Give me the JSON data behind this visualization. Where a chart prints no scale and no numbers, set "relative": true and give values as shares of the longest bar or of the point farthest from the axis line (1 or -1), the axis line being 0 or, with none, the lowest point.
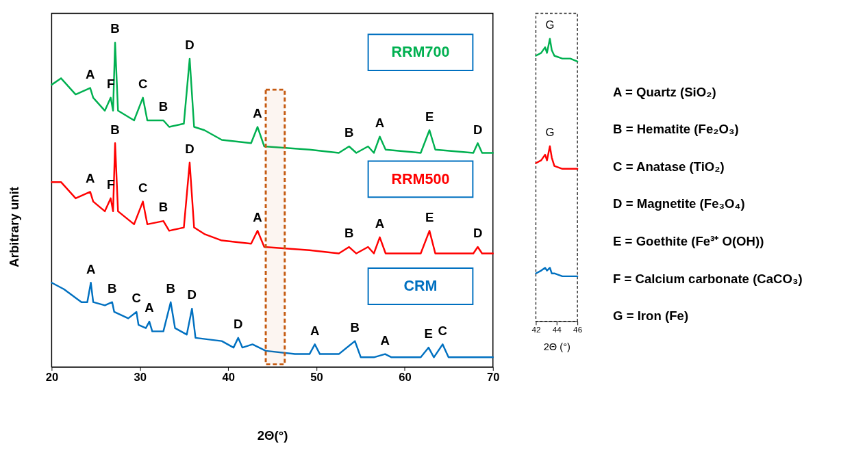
{
  "chart_data": [
    {
      "type": "line",
      "relative": true,
      "xlabel": "2Θ(°)",
      "ylabel": "Arbitrary unit",
      "xlim": [
        20,
        70
      ],
      "xticks": [
        20,
        30,
        40,
        50,
        60,
        70
      ],
      "legend": false,
      "grid": false,
      "series": [
        {
          "name": "RRM700",
          "color": "#00b050",
          "x": [
            20,
            21.06,
            22.72,
            24.37,
            24.71,
            26.03,
            26.69,
            26.96,
            27.19,
            27.52,
            29.34,
            30.34,
            30.84,
            32.66,
            33.32,
            34.98,
            35.64,
            36.14,
            37.3,
            39.28,
            42.6,
            43.33,
            44.09,
            49.22,
            52.54,
            53.7,
            54.52,
            55.85,
            56.51,
            57.18,
            57.84,
            61.82,
            62.81,
            63.47,
            67.78,
            68.28,
            68.77,
            70
          ],
          "values": [
            0.87,
            0.89,
            0.84,
            0.86,
            0.83,
            0.79,
            0.83,
            0.79,
            1,
            0.79,
            0.76,
            0.83,
            0.76,
            0.76,
            0.74,
            0.75,
            0.95,
            0.74,
            0.73,
            0.7,
            0.69,
            0.74,
            0.68,
            0.67,
            0.66,
            0.68,
            0.66,
            0.68,
            0.66,
            0.71,
            0.67,
            0.66,
            0.73,
            0.67,
            0.66,
            0.69,
            0.66,
            0.66
          ]
        },
        {
          "name": "RRM500",
          "color": "#ff0000",
          "x": [
            20,
            21.06,
            22.72,
            24.37,
            24.71,
            26.03,
            26.69,
            26.96,
            27.19,
            27.52,
            29.34,
            30.34,
            30.84,
            32.66,
            33.32,
            34.98,
            35.64,
            36.14,
            37.3,
            39.28,
            42.6,
            43.33,
            44.09,
            49.22,
            52.54,
            53.7,
            54.52,
            55.85,
            56.51,
            57.18,
            57.84,
            61.82,
            62.81,
            63.47,
            67.78,
            68.28,
            68.77,
            70
          ],
          "values": [
            0.57,
            0.57,
            0.52,
            0.54,
            0.51,
            0.48,
            0.52,
            0.48,
            0.69,
            0.48,
            0.44,
            0.51,
            0.44,
            0.45,
            0.42,
            0.43,
            0.63,
            0.43,
            0.41,
            0.39,
            0.38,
            0.42,
            0.37,
            0.36,
            0.35,
            0.37,
            0.35,
            0.37,
            0.35,
            0.4,
            0.35,
            0.35,
            0.42,
            0.35,
            0.35,
            0.37,
            0.35,
            0.35
          ]
        },
        {
          "name": "CRM",
          "color": "#0070c0",
          "x": [
            20,
            21.39,
            23.38,
            24.04,
            24.44,
            24.71,
            26.03,
            26.86,
            27.09,
            28.68,
            29.61,
            29.84,
            30.67,
            31.07,
            31.4,
            32.66,
            33.49,
            33.98,
            35.31,
            35.9,
            36.3,
            39.28,
            40.61,
            41.14,
            41.61,
            42.76,
            44.26,
            47.57,
            49.22,
            49.82,
            50.39,
            52.54,
            54.36,
            55.03,
            56.51,
            57.78,
            58.51,
            61.82,
            62.71,
            63.31,
            64.3,
            64.97,
            70
          ],
          "values": [
            0.26,
            0.24,
            0.2,
            0.2,
            0.26,
            0.2,
            0.19,
            0.2,
            0.17,
            0.15,
            0.17,
            0.13,
            0.12,
            0.14,
            0.11,
            0.11,
            0.2,
            0.12,
            0.1,
            0.18,
            0.09,
            0.08,
            0.06,
            0.09,
            0.06,
            0.07,
            0.05,
            0.04,
            0.04,
            0.07,
            0.04,
            0.04,
            0.08,
            0.03,
            0.03,
            0.04,
            0.03,
            0.03,
            0.06,
            0.03,
            0.07,
            0.03,
            0.03
          ]
        }
      ],
      "bands": [
        {
          "axis": "x",
          "from": 44.26,
          "to": 46.41,
          "color": "#c55a11"
        }
      ],
      "annotations": [
        {
          "text": "A",
          "x": 24.37,
          "y": 0.86
        },
        {
          "text": "F",
          "x": 26.69,
          "y": 0.83
        },
        {
          "text": "B",
          "x": 27.19,
          "y": 1
        },
        {
          "text": "C",
          "x": 30.34,
          "y": 0.83
        },
        {
          "text": "B",
          "x": 32.66,
          "y": 0.76
        },
        {
          "text": "D",
          "x": 35.64,
          "y": 0.95
        },
        {
          "text": "A",
          "x": 43.33,
          "y": 0.74
        },
        {
          "text": "B",
          "x": 53.7,
          "y": 0.68
        },
        {
          "text": "A",
          "x": 57.18,
          "y": 0.71
        },
        {
          "text": "E",
          "x": 62.81,
          "y": 0.73
        },
        {
          "text": "D",
          "x": 68.28,
          "y": 0.69
        },
        {
          "text": "A",
          "x": 24.37,
          "y": 0.54
        },
        {
          "text": "F",
          "x": 26.69,
          "y": 0.52
        },
        {
          "text": "B",
          "x": 27.19,
          "y": 0.69
        },
        {
          "text": "C",
          "x": 30.34,
          "y": 0.51
        },
        {
          "text": "B",
          "x": 32.66,
          "y": 0.45
        },
        {
          "text": "D",
          "x": 35.64,
          "y": 0.63
        },
        {
          "text": "A",
          "x": 43.33,
          "y": 0.42
        },
        {
          "text": "B",
          "x": 53.7,
          "y": 0.37
        },
        {
          "text": "A",
          "x": 57.18,
          "y": 0.4
        },
        {
          "text": "E",
          "x": 62.81,
          "y": 0.42
        },
        {
          "text": "D",
          "x": 68.28,
          "y": 0.37
        },
        {
          "text": "A",
          "x": 24.44,
          "y": 0.26
        },
        {
          "text": "B",
          "x": 26.86,
          "y": 0.2
        },
        {
          "text": "C",
          "x": 29.61,
          "y": 0.17
        },
        {
          "text": "A",
          "x": 31.07,
          "y": 0.14
        },
        {
          "text": "B",
          "x": 33.49,
          "y": 0.2
        },
        {
          "text": "D",
          "x": 35.9,
          "y": 0.18
        },
        {
          "text": "D",
          "x": 41.14,
          "y": 0.09
        },
        {
          "text": "A",
          "x": 49.82,
          "y": 0.07
        },
        {
          "text": "B",
          "x": 54.36,
          "y": 0.08
        },
        {
          "text": "A",
          "x": 57.78,
          "y": 0.04
        },
        {
          "text": "E",
          "x": 62.71,
          "y": 0.06
        },
        {
          "text": "C",
          "x": 64.3,
          "y": 0.07
        }
      ]
    },
    {
      "type": "line",
      "relative": true,
      "xlabel": "2Θ (°)",
      "xlim": [
        42,
        46
      ],
      "xticks": [
        42,
        44,
        46
      ],
      "legend": false,
      "grid": false,
      "series": [
        {
          "color": "#00b050",
          "x": [
            42,
            42.51,
            42.89,
            43.07,
            43.35,
            43.53,
            43.78,
            44.55,
            45.31,
            46
          ],
          "values": [
            0.94,
            0.95,
            0.97,
            0.95,
            1,
            0.96,
            0.94,
            0.93,
            0.93,
            0.92
          ]
        },
        {
          "color": "#ff0000",
          "x": [
            42,
            42.51,
            42.89,
            43.07,
            43.35,
            43.53,
            43.78,
            44.55,
            45.31,
            46
          ],
          "values": [
            0.56,
            0.57,
            0.59,
            0.57,
            0.62,
            0.58,
            0.55,
            0.54,
            0.54,
            0.54
          ]
        },
        {
          "color": "#0070c0",
          "x": [
            42,
            42.51,
            42.89,
            43.07,
            43.35,
            43.53,
            43.78,
            44.55,
            45.31,
            46
          ],
          "values": [
            0.17,
            0.18,
            0.19,
            0.18,
            0.19,
            0.17,
            0.17,
            0.16,
            0.16,
            0.16
          ]
        }
      ],
      "annotations": [
        {
          "text": "G",
          "x": 43.35,
          "y": 1
        },
        {
          "text": "G",
          "x": 43.35,
          "y": 0.62
        }
      ]
    },
    {
      "type": "other",
      "annotations": [
        "A = Quartz (SiO₂)",
        "B = Hematite (Fe₂O₃)",
        "C = Anatase (TiO₂)",
        "D = Magnetite (Fe₃O₄)",
        "E = Goethite (Fe³⁺ O(OH))",
        "F = Calcium carbonate (CaCO₃)",
        "G = Iron (Fe)"
      ]
    }
  ]
}
